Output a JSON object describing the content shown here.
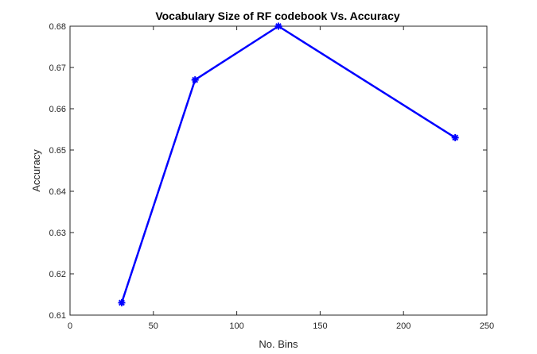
{
  "chart_data": {
    "type": "line",
    "title": "Vocabulary Size of RF codebook Vs. Accuracy",
    "xlabel": "No. Bins",
    "ylabel": "Accuracy",
    "xlim": [
      0,
      250
    ],
    "ylim": [
      0.61,
      0.68
    ],
    "xticks": [
      "0",
      "50",
      "100",
      "150",
      "200",
      "250"
    ],
    "yticks": [
      "0.61",
      "0.62",
      "0.63",
      "0.64",
      "0.65",
      "0.66",
      "0.67",
      "0.68"
    ],
    "grid": false,
    "series": [
      {
        "x": [
          31,
          75,
          125,
          231
        ],
        "y": [
          0.613,
          0.667,
          0.68,
          0.653
        ],
        "color": "#0000ff",
        "marker": "asterisk"
      }
    ]
  }
}
